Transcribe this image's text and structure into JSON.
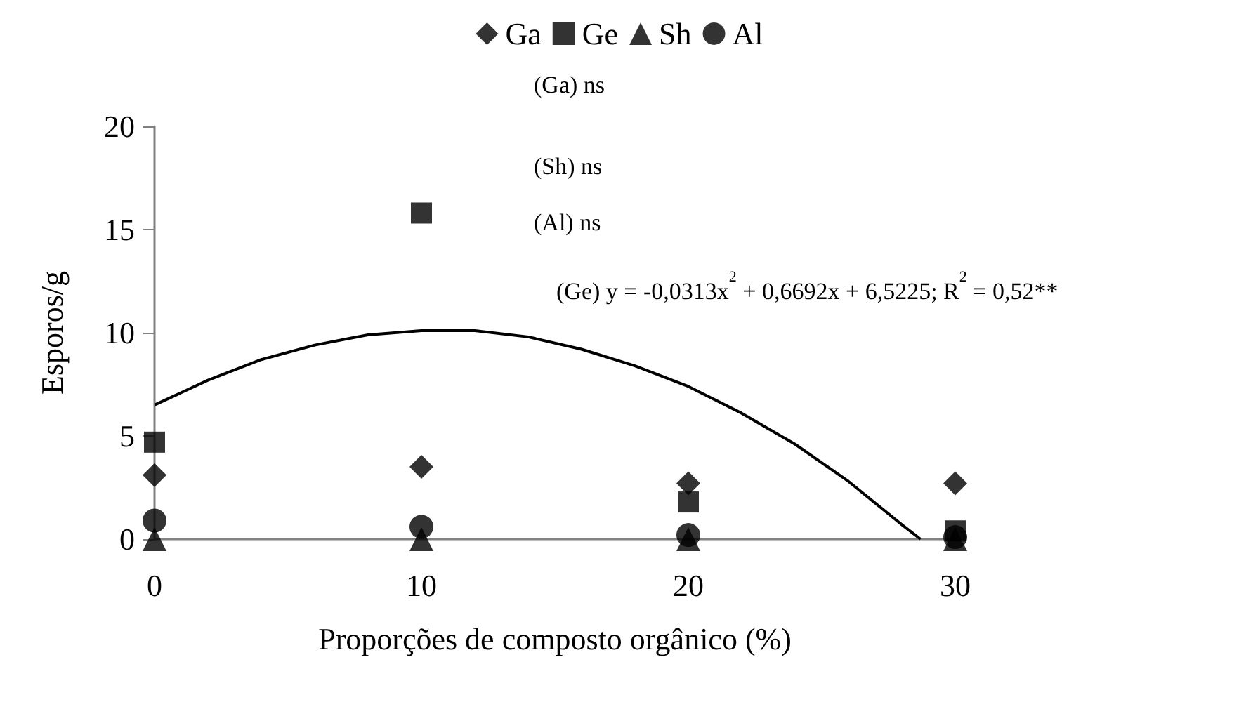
{
  "chart_data": {
    "type": "scatter",
    "xlabel": "Proporções de composto orgânico (%)",
    "ylabel": "Esporos/g",
    "x": [
      0,
      10,
      20,
      30
    ],
    "series": [
      {
        "name": "Ga",
        "color": "#000000",
        "marker": "diamond",
        "values": [
          3.1,
          3.5,
          2.7,
          2.7
        ]
      },
      {
        "name": "Ge",
        "color": "#000000",
        "marker": "square",
        "values": [
          4.7,
          15.8,
          1.8,
          0.4
        ]
      },
      {
        "name": "Sh",
        "color": "#000000",
        "marker": "triangle",
        "values": [
          0,
          0,
          0,
          0
        ]
      },
      {
        "name": "Al",
        "color": "#000000",
        "marker": "circle",
        "values": [
          0.9,
          0.6,
          0.2,
          0.1
        ]
      },
      {
        "type": "line",
        "color": "#000000",
        "marker": "none",
        "line_style": "solid",
        "x": [
          0,
          2,
          4,
          6,
          8,
          10,
          12,
          14,
          16,
          18,
          20,
          22,
          24,
          26,
          28,
          28.7
        ],
        "values": [
          6.5,
          7.7,
          8.7,
          9.4,
          9.9,
          10.1,
          10.1,
          9.8,
          9.2,
          8.4,
          7.4,
          6.1,
          4.6,
          2.8,
          0.7,
          0
        ]
      }
    ],
    "annotations": [
      "(Ga) ns",
      "(Sh) ns",
      "(Al) ns",
      "(Ge) y = -0,0313x$^{2}$ + 0,6692x + 6,5225; R$^{2}$ = 0,52**"
    ],
    "xlim": [
      0,
      30
    ],
    "xticks": [
      0,
      10,
      20,
      30
    ],
    "ylim": [
      0,
      20
    ],
    "yticks": [
      0,
      5,
      10,
      15,
      20
    ],
    "grid": false,
    "legend": "top"
  }
}
